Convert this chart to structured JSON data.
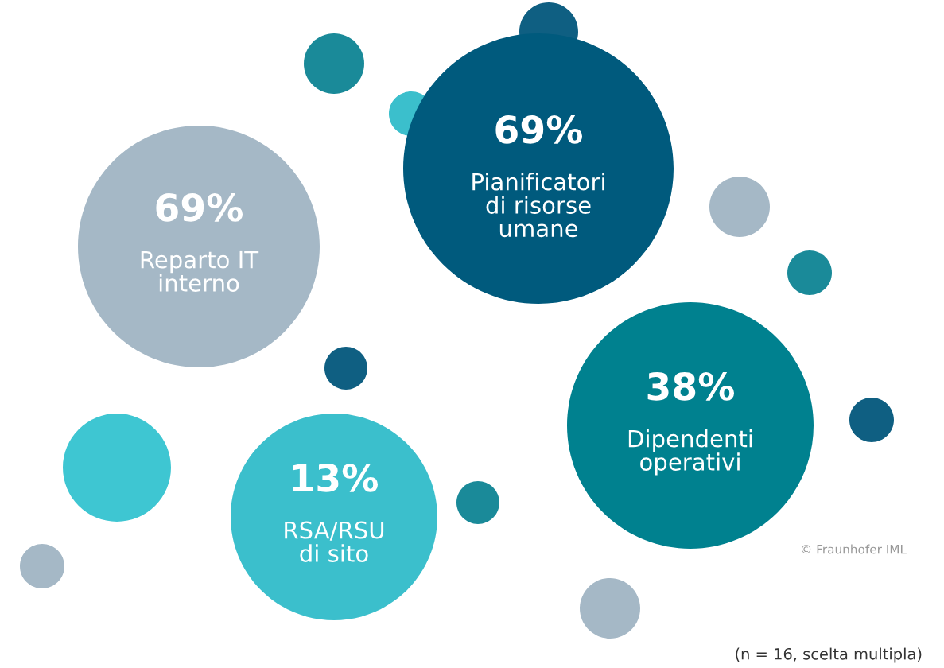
{
  "chart_data": {
    "type": "other",
    "categories": [
      "Reparto IT\ninterno",
      "Pianificatori\ndi risorse\numane",
      "Dipendenti\noperativi",
      "RSA/RSU\ndi sito"
    ],
    "values": [
      69,
      69,
      38,
      13
    ],
    "value_labels": [
      "69%",
      "69%",
      "38%",
      "13%"
    ],
    "colors": [
      "#a5b8c6",
      "#005a7d",
      "#00818f",
      "#3bbfcc"
    ],
    "annotations": [
      "© Fraunhofer IML",
      "(n = 16, scelta multipla)"
    ]
  }
}
